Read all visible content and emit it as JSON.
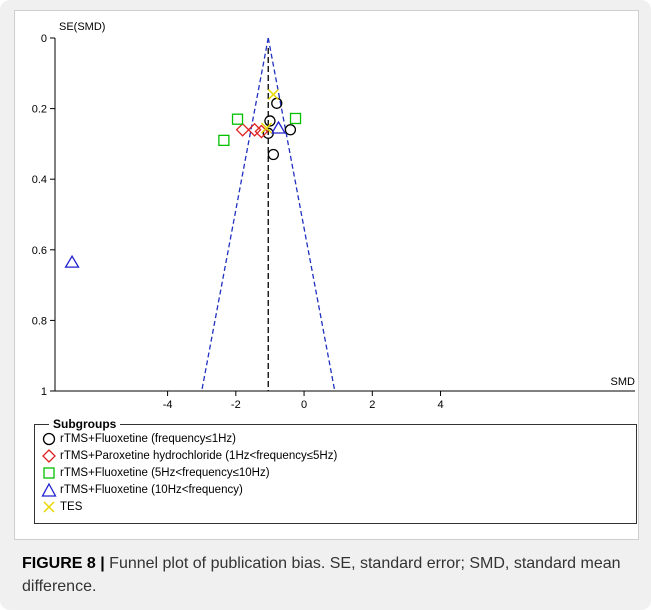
{
  "colors": {
    "circle": "#000000",
    "diamond": "#e02020",
    "square": "#00c000",
    "triangle": "#2020d0",
    "cross": "#e8d800",
    "funnel": "#2030c0",
    "axis": "#000000"
  },
  "chart_data": {
    "type": "scatter",
    "title": "",
    "xlabel": "SMD",
    "ylabel": "SE(SMD)",
    "xlim": [
      -7.3,
      9.7
    ],
    "ylim": [
      0,
      1
    ],
    "y_inverted": true,
    "x_ticks": [
      -4,
      -2,
      0,
      2,
      4
    ],
    "x_tick_labels": [
      "-4",
      "-2",
      "0",
      "2",
      "4"
    ],
    "y_ticks": [
      0,
      0.2,
      0.4,
      0.6,
      0.8,
      1
    ],
    "y_tick_labels": [
      "0",
      "0.2",
      "0.4",
      "0.6",
      "0.8",
      "1"
    ],
    "pooled_smd": -1.05,
    "funnel": {
      "apex": [
        -1.05,
        0
      ],
      "base_left": [
        -3.0,
        1
      ],
      "base_right": [
        0.9,
        1
      ]
    },
    "grid": false,
    "legend_position": "bottom",
    "legend_title": "Subgroups",
    "series": [
      {
        "name": "rTMS+Fluoxetine (frequency≤1Hz)",
        "marker": "circle",
        "points": [
          [
            -0.8,
            0.185
          ],
          [
            -1.0,
            0.235
          ],
          [
            -0.4,
            0.26
          ],
          [
            -1.05,
            0.27
          ],
          [
            -0.9,
            0.33
          ]
        ]
      },
      {
        "name": "rTMS+Paroxetine hydrochloride (1Hz<frequency≤5Hz)",
        "marker": "diamond",
        "points": [
          [
            -1.8,
            0.26
          ],
          [
            -1.45,
            0.26
          ],
          [
            -1.25,
            0.265
          ]
        ]
      },
      {
        "name": "rTMS+Fluoxetine (5Hz<frequency≤10Hz)",
        "marker": "square",
        "points": [
          [
            -1.95,
            0.23
          ],
          [
            -0.25,
            0.228
          ],
          [
            -2.35,
            0.29
          ]
        ]
      },
      {
        "name": "rTMS+Fluoxetine (10Hz<frequency)",
        "marker": "triangle",
        "points": [
          [
            -6.8,
            0.635
          ],
          [
            -0.75,
            0.255
          ]
        ]
      },
      {
        "name": "TES",
        "marker": "cross",
        "points": [
          [
            -0.9,
            0.16
          ],
          [
            -1.1,
            0.255
          ]
        ]
      }
    ]
  },
  "caption": {
    "label": "FIGURE 8 |",
    "text": " Funnel plot of publication bias. SE, standard error; SMD, standard mean difference."
  }
}
